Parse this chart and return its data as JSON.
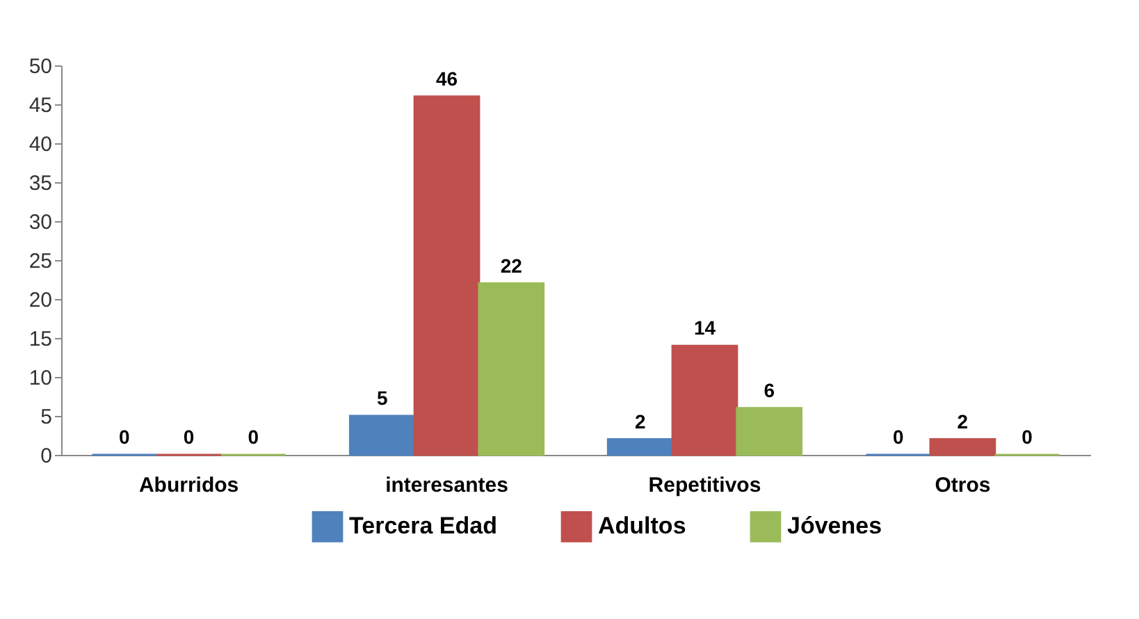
{
  "chart_data": {
    "type": "bar",
    "categories": [
      "Aburridos",
      "interesantes",
      "Repetitivos",
      "Otros"
    ],
    "series": [
      {
        "name": "Tercera Edad",
        "color": "#4f81bd",
        "values": [
          0,
          5,
          2,
          0
        ]
      },
      {
        "name": "Adultos",
        "color": "#c0504d",
        "values": [
          0,
          46,
          14,
          2
        ]
      },
      {
        "name": "Jóvenes",
        "color": "#9bbb59",
        "values": [
          0,
          22,
          6,
          0
        ]
      }
    ],
    "ylim": [
      0,
      50
    ],
    "yticks": [
      0,
      5,
      10,
      15,
      20,
      25,
      30,
      35,
      40,
      45,
      50
    ],
    "grid": false,
    "legend": "bottom",
    "data_labels": true
  }
}
